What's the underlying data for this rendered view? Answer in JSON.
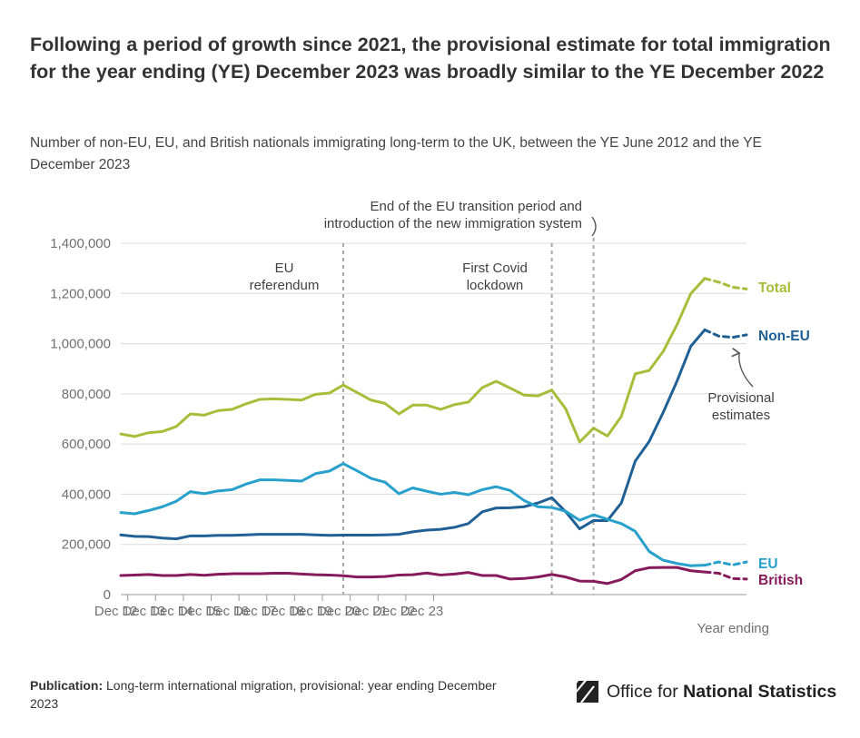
{
  "title": "Following a period of growth since 2021, the provisional estimate for total immigration for the year ending (YE) December 2023 was broadly similar to the YE December 2022",
  "subtitle": "Number of non-EU, EU, and British nationals immigrating long-term to the UK, between the YE June 2012 and the YE December 2023",
  "footer": {
    "publication_label": "Publication:",
    "publication_text": "Long-term international migration, provisional: year ending December 2023"
  },
  "logo": {
    "prefix": "Office for ",
    "bold": "National Statistics"
  },
  "chart_data": {
    "type": "line",
    "xlabel": "Year ending",
    "ylabel": "",
    "ylim": [
      0,
      1400000
    ],
    "yticks": [
      0,
      200000,
      400000,
      600000,
      800000,
      1000000,
      1200000,
      1400000
    ],
    "ytick_labels": [
      "0",
      "200,000",
      "400,000",
      "600,000",
      "800,000",
      "1,000,000",
      "1,200,000",
      "1,400,000"
    ],
    "xticks": [
      0.5,
      2.5,
      4.5,
      6.5,
      8.5,
      10.5,
      12.5,
      14.5,
      16.5,
      18.5,
      20.5,
      22.5
    ],
    "xtick_labels": [
      "Dec 12",
      "Dec 13",
      "Dec 14",
      "Dec 15",
      "Dec 16",
      "Dec 17",
      "Dec 18",
      "Dec 19",
      "Dec 20",
      "Dec 21",
      "Dec 22",
      "Dec 23"
    ],
    "x_unit": "quarters since YE June 2012",
    "grid": true,
    "provisional_from_index": 41,
    "series": [
      {
        "name": "Total",
        "color": "#a8bd3a",
        "values": [
          640000,
          630000,
          645000,
          650000,
          670000,
          720000,
          715000,
          733000,
          738000,
          760000,
          778000,
          780000,
          778000,
          775000,
          798000,
          803000,
          835000,
          805000,
          775000,
          762000,
          720000,
          755000,
          755000,
          738000,
          757000,
          767000,
          825000,
          850000,
          823000,
          795000,
          792000,
          815000,
          740000,
          608000,
          663000,
          632000,
          710000,
          880000,
          893000,
          968000,
          1075000,
          1200000,
          1260000,
          1245000,
          1225000,
          1218000
        ]
      },
      {
        "name": "Non-EU",
        "color": "#206095",
        "values": [
          238000,
          232000,
          231000,
          225000,
          222000,
          234000,
          234000,
          236000,
          236000,
          238000,
          240000,
          240000,
          240000,
          240000,
          238000,
          236000,
          237000,
          237000,
          237000,
          238000,
          240000,
          250000,
          257000,
          260000,
          268000,
          283000,
          330000,
          345000,
          346000,
          350000,
          365000,
          386000,
          330000,
          262000,
          295000,
          295000,
          365000,
          532000,
          610000,
          725000,
          850000,
          990000,
          1055000,
          1030000,
          1025000,
          1035000
        ]
      },
      {
        "name": "EU",
        "color": "#27a0cc",
        "values": [
          327000,
          322000,
          335000,
          350000,
          372000,
          410000,
          402000,
          413000,
          418000,
          440000,
          457000,
          457000,
          455000,
          452000,
          482000,
          492000,
          522000,
          493000,
          463000,
          448000,
          402000,
          425000,
          412000,
          400000,
          407000,
          398000,
          418000,
          430000,
          415000,
          375000,
          350000,
          347000,
          332000,
          296000,
          318000,
          300000,
          283000,
          252000,
          172000,
          137000,
          124000,
          115000,
          117000,
          130000,
          118000,
          130000
        ]
      },
      {
        "name": "British",
        "color": "#871a5b",
        "values": [
          76000,
          78000,
          80000,
          76000,
          76000,
          80000,
          77000,
          81000,
          83000,
          83000,
          83000,
          85000,
          85000,
          82000,
          79000,
          78000,
          75000,
          70000,
          70000,
          72000,
          78000,
          79000,
          86000,
          78000,
          82000,
          88000,
          76000,
          76000,
          62000,
          64000,
          70000,
          80000,
          70000,
          54000,
          53000,
          44000,
          60000,
          95000,
          107000,
          108000,
          108000,
          95000,
          90000,
          85000,
          64000,
          62000
        ]
      }
    ],
    "annotations": [
      {
        "label_lines": [
          "EU",
          "referendum"
        ],
        "x": 16
      },
      {
        "label_lines": [
          "First Covid",
          "lockdown"
        ],
        "x": 31
      },
      {
        "label_lines": [
          "End of the EU transition period and",
          "introduction of the new immigration system"
        ],
        "x": 34
      }
    ],
    "provisional_label_lines": [
      "Provisional",
      "estimates"
    ]
  }
}
